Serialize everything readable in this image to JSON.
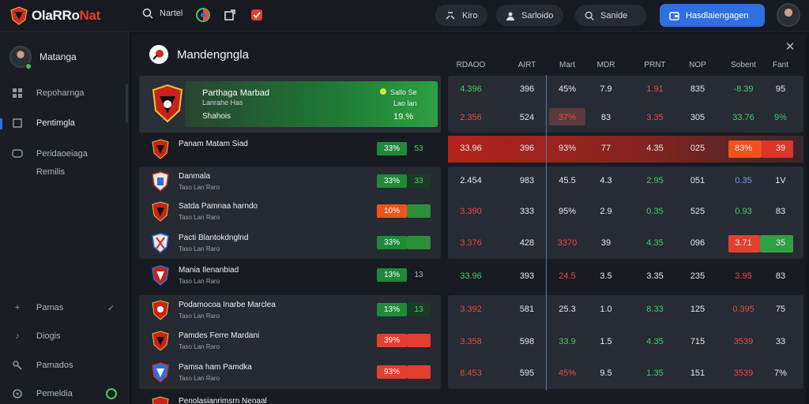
{
  "app": {
    "logo_main": "OlaRRo",
    "logo_accent": "Nat"
  },
  "top": {
    "search_label": "Nartel",
    "pill1": "Kiro",
    "pill2": "Sarloido",
    "pill3": "Sanide",
    "primary_button": "Hasdlaiengagen"
  },
  "sidebar": {
    "user": "Matanga",
    "items": [
      {
        "label": "Repoharnga",
        "icon": "grid-icon"
      },
      {
        "label": "Pentimgla",
        "icon": "square-icon"
      },
      {
        "label": "Peridaoeiaga",
        "icon": "chat-icon"
      },
      {
        "label": "Remilis",
        "icon": ""
      }
    ],
    "bottom_items": [
      {
        "label": "Pamas",
        "icon": "plus-icon"
      },
      {
        "label": "Diogis",
        "icon": "music-icon"
      },
      {
        "label": "Pamados",
        "icon": "wrench-icon"
      },
      {
        "label": "Pemeldia",
        "icon": "gear-icon"
      }
    ]
  },
  "panel": {
    "title": "Mandengngla",
    "columns": [
      "RDAOO",
      "AIRT",
      "Mart",
      "MDR",
      "PRNT",
      "NOP",
      "Sobent",
      "Fant"
    ]
  },
  "featured": {
    "name": "Parthaga Marbad",
    "sub": "Lanrahe Has",
    "tag": "Shahois",
    "odd_label": "Sallo Se",
    "odd_sub": "Lao lan",
    "pct": "19.%"
  },
  "rows": [
    {
      "name": "Panam Matam Siad",
      "sub": "",
      "badge": "33%",
      "ext": "53",
      "tone": "g"
    },
    {
      "name": "Danmala",
      "sub": "Taso Lan Raro",
      "badge": "33%",
      "ext": "33",
      "tone": "g"
    },
    {
      "name": "Satda Pamnaa harndo",
      "sub": "Taso Lan Raro",
      "badge": "10%",
      "ext": "",
      "tone": "o"
    },
    {
      "name": "Pacti Blantokdnglnd",
      "sub": "Taso Lan Raro",
      "badge": "33%",
      "ext": "",
      "tone": "o2"
    },
    {
      "name": "Mania Ilenanbiad",
      "sub": "Taso Lan Raro",
      "badge": "13%",
      "ext": "13",
      "tone": "g"
    },
    {
      "name": "Podamocoa Inarbe Marclea",
      "sub": "Taso Lan Raro",
      "badge": "13%",
      "ext": "13",
      "tone": "g"
    },
    {
      "name": "Pamdes Ferre Mardani",
      "sub": "Taso Lan Raro",
      "badge": "39%",
      "ext": "",
      "tone": "r"
    },
    {
      "name": "Pamsa ham Pamdka",
      "sub": "Taso Lan Raro",
      "badge": "93%",
      "ext": "",
      "tone": "r"
    },
    {
      "name": "Penolasianrimsrn Nenaal",
      "sub": "",
      "badge": "",
      "ext": "",
      "tone": ""
    }
  ],
  "table": [
    [
      "4.396",
      "396",
      "45%",
      "7.9",
      "1.91",
      "835",
      "-8.39",
      "95"
    ],
    [
      "2.356",
      "524",
      "37%",
      "83",
      "3.35",
      "305",
      "33.76",
      "9%"
    ],
    [
      "33.96",
      "396",
      "93%",
      "77",
      "4.35",
      "025",
      "83%",
      "39"
    ],
    [
      "2.454",
      "983",
      "45.5",
      "4.3",
      "2.95",
      "051",
      "0.35",
      "1V"
    ],
    [
      "3.390",
      "333",
      "95%",
      "2.9",
      "0.35",
      "525",
      "0.93",
      "83"
    ],
    [
      "3.376",
      "428",
      "3370",
      "39",
      "4.35",
      "096",
      "3.71",
      "35"
    ],
    [
      "33.96",
      "393",
      "24.5",
      "3.5",
      "3.35",
      "235",
      "3.95",
      "83"
    ],
    [
      "3.392",
      "581",
      "25.3",
      "1.0",
      "8.33",
      "125",
      "0.395",
      "75"
    ],
    [
      "3.358",
      "598",
      "33.9",
      "1.5",
      "4.35",
      "715",
      "3539",
      "33"
    ],
    [
      "8.453",
      "595",
      "45%",
      "9.5",
      "1.35",
      "151",
      "3539",
      "7%"
    ]
  ],
  "colors": {
    "accent": "#2f6fe0",
    "positive": "#3fd060",
    "negative": "#ef4b3c",
    "brand_red": "#e53a2c"
  }
}
